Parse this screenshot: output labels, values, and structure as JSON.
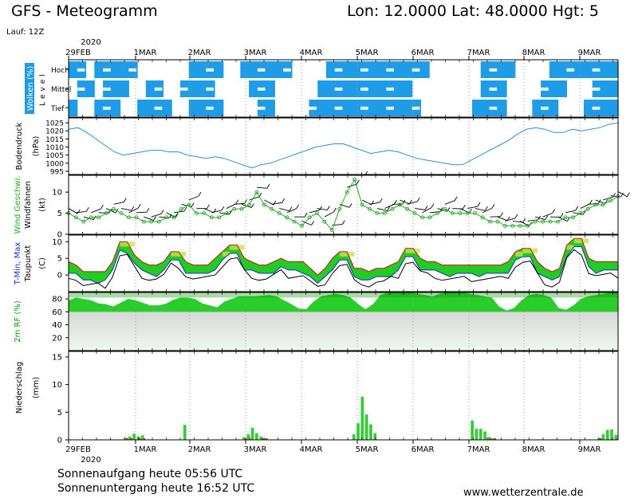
{
  "header": {
    "title": "GFS - Meteogramm",
    "location": "Lon: 12.0000  Lat: 48.0000  Hgt: 5",
    "run": "Lauf: 12Z"
  },
  "footer": {
    "sunrise": "Sonnenaufgang heute 05:56 UTC",
    "sunset": "Sonnenuntergang heute 16:52 UTC",
    "source": "www.wetterzentrale.de"
  },
  "colors": {
    "cloud": "#1e9ce8",
    "pressure": "#2a8fd6",
    "wind": "#22aa22",
    "tmin": "#1133cc",
    "tmax": "#cc1111",
    "humidity": "#22cc22",
    "precip": "#33cc33",
    "precip_red": "#dd2222",
    "grid": "#999999"
  },
  "chart_data": [
    {
      "type": "heatmap",
      "panel": "clouds",
      "ylabel": "Wolken (%)",
      "side_label": "Level",
      "levels": [
        "Hoch",
        "Mittel",
        "Tief"
      ],
      "x_start_date": "2020-02-29",
      "x_dates": [
        "29FEB",
        "1MAR",
        "2MAR",
        "3MAR",
        "4MAR",
        "5MAR",
        "6MAR",
        "7MAR",
        "8MAR",
        "9MAR"
      ],
      "year_label": "2020",
      "cover_hoch": [
        1,
        1,
        0,
        1,
        1,
        1,
        1,
        1,
        0,
        0,
        0,
        0,
        0,
        0,
        1,
        1,
        1,
        1,
        0,
        0,
        1,
        1,
        1,
        1,
        1,
        1,
        0,
        0,
        0,
        0,
        1,
        1,
        1,
        1,
        1,
        1,
        1,
        1,
        1,
        1,
        1,
        1,
        0,
        0,
        0,
        0,
        0,
        0,
        1,
        1,
        1,
        1,
        0,
        0,
        0,
        0,
        1,
        1,
        1,
        1,
        1,
        1,
        1,
        1
      ],
      "cover_mittel": [
        0,
        1,
        1,
        0,
        1,
        1,
        1,
        0,
        0,
        1,
        1,
        0,
        0,
        1,
        1,
        1,
        1,
        0,
        0,
        0,
        0,
        1,
        1,
        1,
        0,
        0,
        0,
        0,
        0,
        1,
        1,
        1,
        1,
        1,
        1,
        1,
        1,
        1,
        1,
        1,
        0,
        0,
        0,
        0,
        0,
        0,
        0,
        0,
        1,
        1,
        1,
        0,
        0,
        0,
        0,
        1,
        1,
        1,
        0,
        0,
        0,
        1,
        1,
        1
      ],
      "cover_tief": [
        1,
        0,
        0,
        1,
        1,
        1,
        0,
        0,
        1,
        1,
        1,
        1,
        0,
        0,
        1,
        1,
        1,
        1,
        0,
        0,
        0,
        0,
        1,
        1,
        0,
        0,
        0,
        0,
        1,
        1,
        1,
        1,
        1,
        1,
        1,
        1,
        1,
        1,
        1,
        1,
        1,
        0,
        0,
        0,
        0,
        0,
        0,
        1,
        1,
        1,
        1,
        0,
        0,
        0,
        1,
        1,
        1,
        0,
        0,
        0,
        1,
        1,
        1,
        1
      ]
    },
    {
      "type": "line",
      "panel": "pressure",
      "ylabel": "Bodendruck",
      "unit": "(hPa)",
      "yticks": [
        995,
        1000,
        1005,
        1010,
        1015,
        1020,
        1025
      ],
      "ylim": [
        993,
        1028
      ],
      "values": [
        1021,
        1022,
        1019,
        1015,
        1011,
        1007,
        1005,
        1006,
        1007,
        1008,
        1008,
        1007,
        1007,
        1005,
        1004,
        1003,
        1004,
        1003,
        1001,
        999,
        997,
        999,
        1000,
        1002,
        1004,
        1006,
        1008,
        1010,
        1011,
        1012,
        1012,
        1010,
        1008,
        1006,
        1007,
        1008,
        1007,
        1005,
        1003,
        1002,
        1001,
        1000,
        999,
        999,
        1002,
        1005,
        1008,
        1011,
        1014,
        1018,
        1021,
        1022,
        1021,
        1019,
        1019,
        1021,
        1020,
        1021,
        1022,
        1024,
        1025
      ]
    },
    {
      "type": "line",
      "panel": "wind",
      "ylabel": "Wind Geschwi.",
      "ylabel2": "Windfahnen",
      "unit": "(kt)",
      "yticks": [
        0,
        5,
        10
      ],
      "ylim": [
        0,
        14
      ],
      "values": [
        5,
        4,
        3,
        4,
        4,
        5,
        6,
        5,
        4,
        4,
        3,
        3,
        3,
        4,
        4,
        6,
        7,
        5,
        5,
        4,
        4,
        5,
        6,
        6,
        7,
        10,
        7,
        6,
        5,
        4,
        3,
        2,
        4,
        5,
        3,
        1,
        6,
        10,
        13,
        7,
        6,
        5,
        5,
        6,
        7,
        6,
        5,
        4,
        4,
        5,
        6,
        5,
        5,
        5,
        5,
        4,
        3,
        3,
        2,
        2,
        2,
        2,
        3,
        3,
        3,
        3,
        4,
        4,
        5,
        6,
        7,
        7,
        8,
        9
      ]
    },
    {
      "type": "area",
      "panel": "temperature",
      "ylabel": "T-Min, Max",
      "ylabel2": "Taupunkt",
      "unit": "(C)",
      "yticks": [
        0,
        5,
        10
      ],
      "ylim": [
        -5,
        12
      ],
      "tmax": [
        4,
        3,
        1,
        1,
        1,
        1,
        4,
        10,
        10,
        6,
        4,
        3,
        3,
        4,
        7,
        7,
        4,
        3,
        3,
        3,
        5,
        7,
        9,
        9,
        5,
        4,
        3,
        3,
        4,
        5,
        4,
        4,
        4,
        2,
        0,
        2,
        5,
        7,
        7,
        2,
        2,
        1,
        2,
        2,
        3,
        4,
        8,
        8,
        5,
        4,
        4,
        3,
        3,
        3,
        3,
        3,
        3,
        3,
        3,
        3,
        4,
        7,
        8,
        8,
        4,
        2,
        1,
        2,
        9,
        11,
        11,
        5,
        4,
        4,
        4,
        4
      ]
    },
    {
      "type": "area",
      "panel": "humidity",
      "ylabel": "2m RF (%)",
      "yticks": [
        20,
        40,
        60,
        80
      ],
      "ylim": [
        0,
        90
      ],
      "values": [
        78,
        82,
        80,
        78,
        73,
        72,
        68,
        74,
        80,
        78,
        74,
        70,
        70,
        72,
        78,
        82,
        82,
        80,
        73,
        70,
        67,
        76,
        80,
        84,
        84,
        84,
        85,
        86,
        84,
        78,
        72,
        65,
        64,
        76,
        84,
        86,
        88,
        86,
        82,
        72,
        64,
        72,
        86,
        90,
        90,
        90,
        90,
        88,
        86,
        84,
        88,
        90,
        90,
        90,
        88,
        86,
        84,
        82,
        68,
        62,
        66,
        78,
        86,
        88,
        86,
        82,
        66,
        63,
        70,
        80,
        84,
        86,
        88,
        90,
        90
      ]
    },
    {
      "type": "bar",
      "panel": "precip",
      "ylabel": "Niederschlag",
      "unit": "(mm)",
      "yticks": [
        0,
        5,
        10,
        15
      ],
      "ylim": [
        0,
        16
      ],
      "values": [
        0,
        0,
        0,
        0,
        0,
        0,
        0,
        0,
        0,
        0,
        0,
        0,
        0,
        0.4,
        0.6,
        1.1,
        0.6,
        0.8,
        0,
        0,
        0,
        0,
        0,
        0,
        0,
        0,
        0,
        2.7,
        0,
        0,
        0,
        0,
        0,
        0,
        0,
        0,
        0,
        0,
        0,
        0,
        0,
        0.5,
        1.0,
        2.2,
        1.2,
        0.6,
        0.3,
        0,
        0,
        0,
        0,
        0,
        0,
        0,
        0,
        0,
        0,
        0,
        0,
        0,
        0,
        0,
        0,
        0,
        0,
        0,
        0,
        1.0,
        3.0,
        7.8,
        4.6,
        2.8,
        1.2,
        0,
        0,
        0,
        0,
        0,
        0,
        0,
        0,
        0,
        0,
        0,
        0,
        0,
        0,
        0,
        0,
        0,
        0,
        0,
        0,
        0,
        0,
        3.5,
        2.0,
        2.0,
        1.5,
        0.5,
        0.3,
        0,
        0,
        0,
        0,
        0,
        0,
        0,
        0,
        0,
        0,
        0,
        0,
        0,
        0,
        0,
        0,
        0,
        0,
        0,
        0,
        0,
        0,
        0,
        0,
        0.3,
        1.0,
        1.8,
        1.9,
        0.9
      ]
    }
  ]
}
